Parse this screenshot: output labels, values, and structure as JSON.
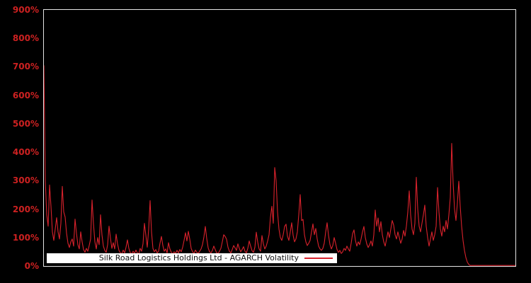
{
  "chart_data": {
    "type": "line",
    "title": "",
    "legend": "Silk Road Logistics Holdings Ltd - AGARCH Volatility",
    "series_name": "AGARCH Volatility",
    "background_color": "#000000",
    "line_color": "#d8222c",
    "axis_frame_color": "#e4e4e4",
    "tick_label_color": "#cd2121",
    "legend_background": "#ffffff",
    "legend_text_color": "#111111",
    "grid": false,
    "legend_position": "bottom-inside",
    "xlabel": "",
    "ylabel": "",
    "ylim": [
      0,
      900
    ],
    "ytick_percent": [
      0,
      100,
      200,
      300,
      400,
      500,
      600,
      700,
      800,
      900
    ],
    "ytick_labels": [
      "0%",
      "100%",
      "200%",
      "300%",
      "400%",
      "500%",
      "600%",
      "700%",
      "800%",
      "900%"
    ],
    "x_tick_labels": [],
    "values_percent": [
      704,
      300,
      180,
      140,
      285,
      210,
      120,
      90,
      130,
      170,
      120,
      95,
      150,
      280,
      190,
      172,
      115,
      80,
      65,
      85,
      95,
      70,
      165,
      115,
      75,
      60,
      120,
      85,
      58,
      48,
      62,
      52,
      72,
      95,
      232,
      150,
      85,
      60,
      100,
      75,
      180,
      110,
      70,
      55,
      48,
      75,
      140,
      98,
      62,
      82,
      60,
      112,
      78,
      55,
      46,
      42,
      56,
      46,
      66,
      92,
      62,
      47,
      42,
      52,
      44,
      56,
      46,
      42,
      62,
      52,
      78,
      150,
      108,
      66,
      130,
      230,
      120,
      62,
      50,
      58,
      46,
      52,
      80,
      104,
      72,
      52,
      60,
      46,
      82,
      60,
      48,
      42,
      50,
      44,
      55,
      46,
      58,
      50,
      66,
      90,
      117,
      88,
      122,
      95,
      62,
      50,
      44,
      56,
      48,
      44,
      52,
      60,
      75,
      102,
      139,
      96,
      64,
      50,
      46,
      55,
      70,
      58,
      46,
      44,
      52,
      62,
      85,
      110,
      104,
      94,
      66,
      52,
      46,
      58,
      72,
      64,
      55,
      78,
      62,
      50,
      58,
      68,
      52,
      46,
      62,
      88,
      70,
      54,
      48,
      66,
      119,
      84,
      60,
      52,
      107,
      78,
      60,
      70,
      88,
      110,
      172,
      210,
      150,
      346,
      300,
      190,
      130,
      100,
      90,
      110,
      139,
      147,
      105,
      90,
      120,
      152,
      108,
      85,
      95,
      120,
      180,
      251,
      160,
      164,
      110,
      85,
      72,
      80,
      90,
      120,
      148,
      110,
      132,
      95,
      70,
      60,
      55,
      62,
      80,
      120,
      152,
      108,
      76,
      60,
      72,
      100,
      80,
      58,
      48,
      55,
      44,
      50,
      62,
      55,
      70,
      60,
      52,
      80,
      114,
      127,
      90,
      70,
      85,
      75,
      95,
      120,
      139,
      100,
      78,
      65,
      75,
      88,
      70,
      110,
      197,
      140,
      169,
      120,
      156,
      110,
      85,
      70,
      95,
      120,
      100,
      130,
      160,
      144,
      110,
      95,
      120,
      100,
      80,
      95,
      125,
      105,
      140,
      190,
      264,
      180,
      130,
      110,
      150,
      312,
      200,
      140,
      120,
      150,
      180,
      214,
      140,
      100,
      70,
      95,
      120,
      90,
      110,
      140,
      276,
      190,
      130,
      105,
      140,
      120,
      160,
      130,
      180,
      240,
      431,
      293,
      200,
      160,
      220,
      298,
      210,
      140,
      90,
      55,
      30,
      14,
      6,
      2,
      2,
      2,
      2,
      2,
      2,
      2,
      2,
      2,
      2,
      2,
      2,
      2,
      2,
      2,
      2,
      2,
      2,
      2,
      2,
      2,
      2,
      2,
      2,
      2,
      2,
      2,
      2,
      2,
      2,
      2,
      2,
      2
    ]
  }
}
